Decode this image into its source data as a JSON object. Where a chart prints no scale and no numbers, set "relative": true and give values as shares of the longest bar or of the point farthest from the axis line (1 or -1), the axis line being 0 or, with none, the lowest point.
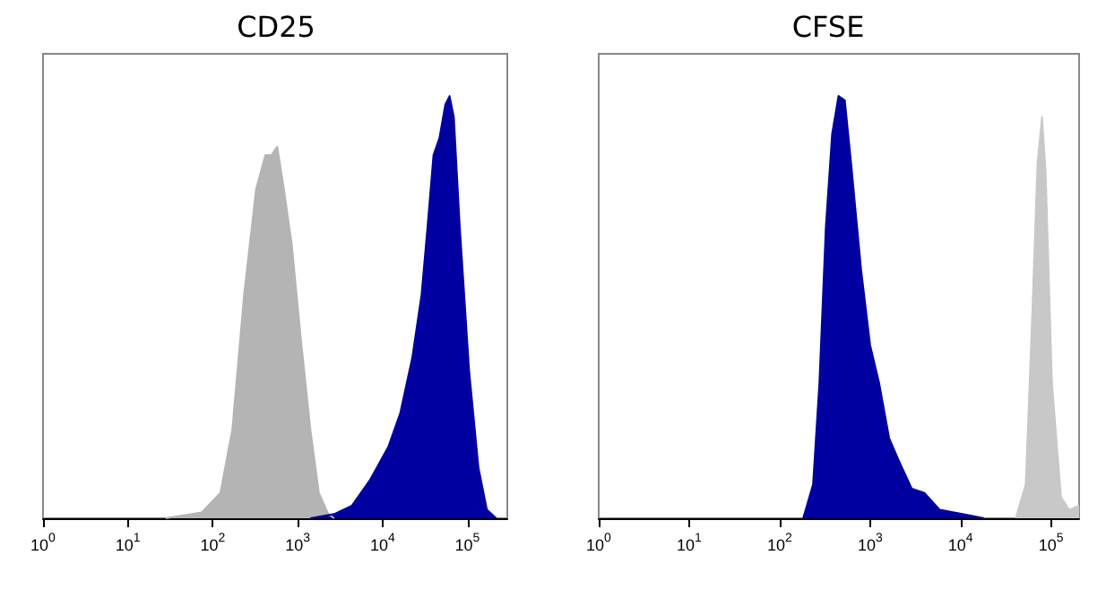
{
  "chart_data": [
    {
      "type": "area",
      "title": "CD25",
      "relative": true,
      "log": "x",
      "xlim": [
        1,
        295000
      ],
      "xticks": [
        {
          "value": 1,
          "label": "10$^{0}$"
        },
        {
          "value": 10,
          "label": "10$^{1}$"
        },
        {
          "value": 100,
          "label": "10$^{2}$"
        },
        {
          "value": 1000,
          "label": "10$^{3}$"
        },
        {
          "value": 10000,
          "label": "10$^{4}$"
        },
        {
          "value": 100000,
          "label": "10$^{5}$"
        }
      ],
      "grid": false,
      "series": [
        {
          "color": "#b4b4b4",
          "x": [
            28,
            74,
            123,
            170,
            234,
            324,
            417,
            490,
            575,
            676,
            851,
            1096,
            1413,
            1778,
            2291,
            2692
          ],
          "values": [
            0,
            0.014,
            0.06,
            0.21,
            0.53,
            0.78,
            0.86,
            0.86,
            0.88,
            0.79,
            0.65,
            0.42,
            0.21,
            0.06,
            0.01,
            0
          ]
        },
        {
          "color": "#0000a0",
          "x": [
            1413,
            2692,
            4365,
            7079,
            11750,
            16220,
            22390,
            28840,
            33880,
            39810,
            46770,
            54950,
            61660,
            69180,
            81280,
            104700,
            134900,
            169800,
            218800
          ],
          "values": [
            0,
            0.01,
            0.03,
            0.09,
            0.17,
            0.25,
            0.38,
            0.53,
            0.69,
            0.86,
            0.9,
            0.98,
            1,
            0.95,
            0.69,
            0.35,
            0.12,
            0.02,
            0
          ]
        }
      ]
    },
    {
      "type": "area",
      "title": "CFSE",
      "relative": true,
      "log": "x",
      "xlim": [
        1,
        204200
      ],
      "xticks": [
        {
          "value": 1,
          "label": "10$^{0}$"
        },
        {
          "value": 10,
          "label": "10$^{1}$"
        },
        {
          "value": 100,
          "label": "10$^{2}$"
        },
        {
          "value": 1000,
          "label": "10$^{3}$"
        },
        {
          "value": 10000,
          "label": "10$^{4}$"
        },
        {
          "value": 100000,
          "label": "10$^{5}$"
        }
      ],
      "grid": false,
      "series": [
        {
          "color": "#0000a0",
          "x": [
            182,
            234,
            275,
            324,
            380,
            447,
            525,
            617,
            794,
            1000,
            1259,
            1622,
            2042,
            2884,
            3981,
            5888,
            10470,
            18200
          ],
          "values": [
            0,
            0.08,
            0.32,
            0.69,
            0.91,
            1,
            0.99,
            0.84,
            0.59,
            0.41,
            0.32,
            0.19,
            0.14,
            0.07,
            0.06,
            0.02,
            0.01,
            0
          ]
        },
        {
          "color": "#c8c8c8",
          "x": [
            40740,
            52480,
            61660,
            70790,
            79430,
            87100,
            102300,
            128800,
            158500,
            204200
          ],
          "values": [
            0,
            0.08,
            0.47,
            0.84,
            0.95,
            0.82,
            0.32,
            0.05,
            0.02,
            0.03
          ]
        }
      ]
    }
  ]
}
